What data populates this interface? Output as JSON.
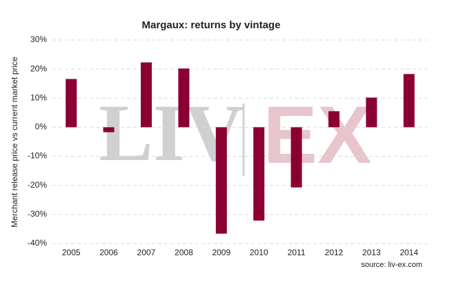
{
  "chart_data": {
    "type": "bar",
    "title": "Margaux: returns by vintage",
    "y_label": "Merchant release price vs current market price",
    "source": "source: liv-ex.com",
    "watermark": [
      "LIV",
      "EX"
    ],
    "categories": [
      "2005",
      "2006",
      "2007",
      "2008",
      "2009",
      "2010",
      "2011",
      "2012",
      "2013",
      "2014"
    ],
    "values": [
      16.6,
      -1.7,
      22.3,
      20.2,
      -36.6,
      -32.1,
      -20.7,
      5.5,
      10.2,
      18.3
    ],
    "color": "#8a0033",
    "ylim": [
      -40,
      30
    ],
    "yticks": [
      {
        "value": -40,
        "label": "-40%"
      },
      {
        "value": -30,
        "label": "-30%"
      },
      {
        "value": -20,
        "label": "-20%"
      },
      {
        "value": -10,
        "label": "-10%"
      },
      {
        "value": 0,
        "label": "0%"
      },
      {
        "value": 10,
        "label": "10%"
      },
      {
        "value": 20,
        "label": "20%"
      },
      {
        "value": 30,
        "label": "30%"
      }
    ],
    "grid": true
  }
}
